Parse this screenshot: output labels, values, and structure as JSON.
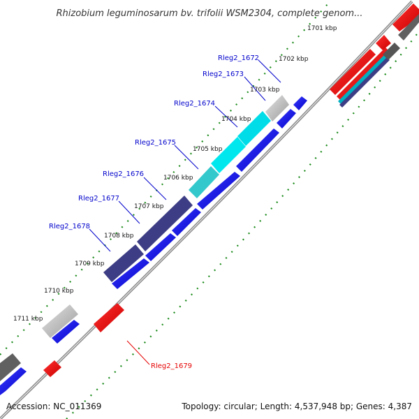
{
  "title": "Rhizobium leguminosarum bv. trifolii WSM2304, complete genom...",
  "accession_text": "Accession: NC_011369",
  "summary_text": "Topology: circular; Length: 4,537,948 bp; Genes: 4,387",
  "ticks": [
    "1701 kbp",
    "1702 kbp",
    "1703 kbp",
    "1704 kbp",
    "1705 kbp",
    "1706 kbp",
    "1707 kbp",
    "1708 kbp",
    "1709 kbp",
    "1710 kbp",
    "1711 kbp"
  ],
  "genes": [
    {
      "label": "Rleg2_1672"
    },
    {
      "label": "Rleg2_1673"
    },
    {
      "label": "Rleg2_1674"
    },
    {
      "label": "Rleg2_1675"
    },
    {
      "label": "Rleg2_1676"
    },
    {
      "label": "Rleg2_1677"
    },
    {
      "label": "Rleg2_1678"
    },
    {
      "label": "Rleg2_1679"
    }
  ],
  "colors": {
    "forward_gene": "#0000ee",
    "reverse_gene": "#ee0000",
    "highlight_cyan": "#00e0e8",
    "highlight_navy": "#3d3d85",
    "unmatched_gray": "#b0b0b0",
    "label_blue": "#0000cc",
    "label_red": "#e60000",
    "tick_green": "#1a7a1a"
  }
}
